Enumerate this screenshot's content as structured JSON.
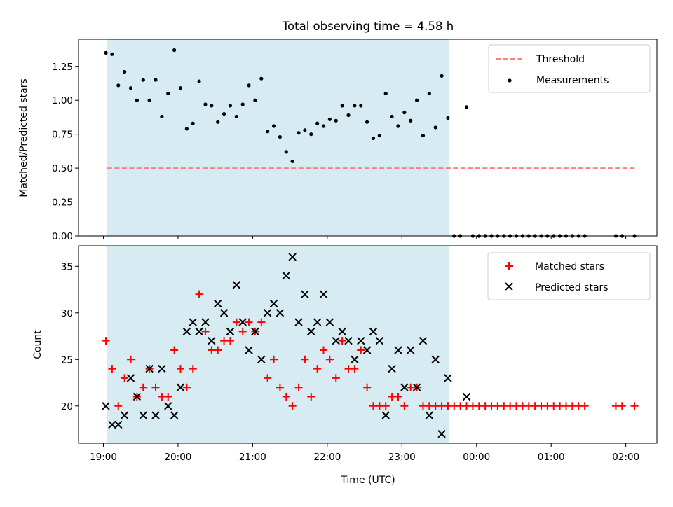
{
  "chart_data": {
    "type": "scatter",
    "title": "Total observing time = 4.58 h",
    "xlabel": "Time (UTC)",
    "xlim": [
      "18:40",
      "02:25"
    ],
    "x_tick_labels": [
      "19:00",
      "20:00",
      "21:00",
      "22:00",
      "23:00",
      "00:00",
      "01:00",
      "02:00"
    ],
    "shaded_region": {
      "start": "19:03",
      "end": "23:38",
      "color": "#add8e6"
    },
    "panels": [
      {
        "ylabel": "Matched/Predicted stars",
        "ylim": [
          0,
          1.45
        ],
        "y_tick_labels": [
          "0.00",
          "0.25",
          "0.50",
          "0.75",
          "1.00",
          "1.25"
        ],
        "legend": {
          "position": "top-right",
          "entries": [
            "Threshold",
            "Measurements"
          ]
        },
        "threshold": {
          "name": "Threshold",
          "value": 0.5,
          "x_start": "19:03",
          "x_end": "02:08",
          "color": "#ff7f7f",
          "style": "dashed"
        },
        "series": [
          {
            "name": "Measurements",
            "marker": "dot",
            "color": "#000000",
            "points": [
              [
                "19:02",
                1.35
              ],
              [
                "19:07",
                1.34
              ],
              [
                "19:12",
                1.11
              ],
              [
                "19:17",
                1.21
              ],
              [
                "19:22",
                1.09
              ],
              [
                "19:27",
                1.0
              ],
              [
                "19:32",
                1.15
              ],
              [
                "19:37",
                1.0
              ],
              [
                "19:42",
                1.15
              ],
              [
                "19:47",
                0.88
              ],
              [
                "19:52",
                1.05
              ],
              [
                "19:57",
                1.37
              ],
              [
                "20:02",
                1.09
              ],
              [
                "20:07",
                0.79
              ],
              [
                "20:12",
                0.83
              ],
              [
                "20:17",
                1.14
              ],
              [
                "20:22",
                0.97
              ],
              [
                "20:27",
                0.96
              ],
              [
                "20:32",
                0.84
              ],
              [
                "20:37",
                0.9
              ],
              [
                "20:42",
                0.96
              ],
              [
                "20:47",
                0.88
              ],
              [
                "20:52",
                0.97
              ],
              [
                "20:57",
                1.11
              ],
              [
                "21:02",
                1.0
              ],
              [
                "21:07",
                1.16
              ],
              [
                "21:12",
                0.77
              ],
              [
                "21:17",
                0.81
              ],
              [
                "21:22",
                0.73
              ],
              [
                "21:27",
                0.62
              ],
              [
                "21:32",
                0.55
              ],
              [
                "21:37",
                0.76
              ],
              [
                "21:42",
                0.78
              ],
              [
                "21:47",
                0.75
              ],
              [
                "21:52",
                0.83
              ],
              [
                "21:57",
                0.81
              ],
              [
                "22:02",
                0.86
              ],
              [
                "22:07",
                0.85
              ],
              [
                "22:12",
                0.96
              ],
              [
                "22:17",
                0.89
              ],
              [
                "22:22",
                0.96
              ],
              [
                "22:27",
                0.96
              ],
              [
                "22:32",
                0.84
              ],
              [
                "22:37",
                0.72
              ],
              [
                "22:42",
                0.74
              ],
              [
                "22:47",
                1.05
              ],
              [
                "22:52",
                0.88
              ],
              [
                "22:57",
                0.81
              ],
              [
                "23:02",
                0.91
              ],
              [
                "23:07",
                0.85
              ],
              [
                "23:12",
                1.0
              ],
              [
                "23:17",
                0.74
              ],
              [
                "23:22",
                1.05
              ],
              [
                "23:27",
                0.8
              ],
              [
                "23:32",
                1.18
              ],
              [
                "23:37",
                0.87
              ],
              [
                "23:42",
                0.0
              ],
              [
                "23:47",
                0.0
              ],
              [
                "23:52",
                0.95
              ],
              [
                "23:57",
                0.0
              ],
              [
                "00:02",
                0.0
              ],
              [
                "00:07",
                0.0
              ],
              [
                "00:12",
                0.0
              ],
              [
                "00:17",
                0.0
              ],
              [
                "00:22",
                0.0
              ],
              [
                "00:27",
                0.0
              ],
              [
                "00:32",
                0.0
              ],
              [
                "00:37",
                0.0
              ],
              [
                "00:42",
                0.0
              ],
              [
                "00:47",
                0.0
              ],
              [
                "00:52",
                0.0
              ],
              [
                "00:57",
                0.0
              ],
              [
                "01:02",
                0.0
              ],
              [
                "01:07",
                0.0
              ],
              [
                "01:12",
                0.0
              ],
              [
                "01:17",
                0.0
              ],
              [
                "01:22",
                0.0
              ],
              [
                "01:27",
                0.0
              ],
              [
                "01:52",
                0.0
              ],
              [
                "01:57",
                0.0
              ],
              [
                "02:07",
                0.0
              ]
            ]
          }
        ]
      },
      {
        "ylabel": "Count",
        "ylim": [
          16,
          37.2
        ],
        "y_tick_labels": [
          "20",
          "25",
          "30",
          "35"
        ],
        "legend": {
          "position": "top-right",
          "entries": [
            "Matched stars",
            "Predicted stars"
          ]
        },
        "series": [
          {
            "name": "Matched stars",
            "marker": "plus",
            "color": "#ff0000",
            "points": [
              [
                "19:02",
                27
              ],
              [
                "19:07",
                24
              ],
              [
                "19:12",
                20
              ],
              [
                "19:17",
                23
              ],
              [
                "19:22",
                25
              ],
              [
                "19:27",
                21
              ],
              [
                "19:32",
                22
              ],
              [
                "19:37",
                24
              ],
              [
                "19:42",
                22
              ],
              [
                "19:47",
                21
              ],
              [
                "19:52",
                21
              ],
              [
                "19:57",
                26
              ],
              [
                "20:02",
                24
              ],
              [
                "20:07",
                22
              ],
              [
                "20:12",
                24
              ],
              [
                "20:17",
                32
              ],
              [
                "20:22",
                28
              ],
              [
                "20:27",
                26
              ],
              [
                "20:32",
                26
              ],
              [
                "20:37",
                27
              ],
              [
                "20:42",
                27
              ],
              [
                "20:47",
                29
              ],
              [
                "20:52",
                28
              ],
              [
                "20:57",
                29
              ],
              [
                "21:02",
                28
              ],
              [
                "21:07",
                29
              ],
              [
                "21:12",
                23
              ],
              [
                "21:17",
                25
              ],
              [
                "21:22",
                22
              ],
              [
                "21:27",
                21
              ],
              [
                "21:32",
                20
              ],
              [
                "21:37",
                22
              ],
              [
                "21:42",
                25
              ],
              [
                "21:47",
                21
              ],
              [
                "21:52",
                24
              ],
              [
                "21:57",
                26
              ],
              [
                "22:02",
                25
              ],
              [
                "22:07",
                23
              ],
              [
                "22:12",
                27
              ],
              [
                "22:17",
                24
              ],
              [
                "22:22",
                24
              ],
              [
                "22:27",
                26
              ],
              [
                "22:32",
                22
              ],
              [
                "22:37",
                20
              ],
              [
                "22:42",
                20
              ],
              [
                "22:47",
                20
              ],
              [
                "22:52",
                21
              ],
              [
                "22:57",
                21
              ],
              [
                "23:02",
                20
              ],
              [
                "23:07",
                22
              ],
              [
                "23:12",
                22
              ],
              [
                "23:17",
                20
              ],
              [
                "23:22",
                20
              ],
              [
                "23:27",
                20
              ],
              [
                "23:32",
                20
              ],
              [
                "23:37",
                20
              ],
              [
                "23:42",
                20
              ],
              [
                "23:47",
                20
              ],
              [
                "23:52",
                20
              ],
              [
                "23:57",
                20
              ],
              [
                "00:02",
                20
              ],
              [
                "00:07",
                20
              ],
              [
                "00:12",
                20
              ],
              [
                "00:17",
                20
              ],
              [
                "00:22",
                20
              ],
              [
                "00:27",
                20
              ],
              [
                "00:32",
                20
              ],
              [
                "00:37",
                20
              ],
              [
                "00:42",
                20
              ],
              [
                "00:47",
                20
              ],
              [
                "00:52",
                20
              ],
              [
                "00:57",
                20
              ],
              [
                "01:02",
                20
              ],
              [
                "01:07",
                20
              ],
              [
                "01:12",
                20
              ],
              [
                "01:17",
                20
              ],
              [
                "01:22",
                20
              ],
              [
                "01:27",
                20
              ],
              [
                "01:52",
                20
              ],
              [
                "01:57",
                20
              ],
              [
                "02:07",
                20
              ]
            ]
          },
          {
            "name": "Predicted stars",
            "marker": "x",
            "color": "#000000",
            "points": [
              [
                "19:02",
                20
              ],
              [
                "19:07",
                18
              ],
              [
                "19:12",
                18
              ],
              [
                "19:17",
                19
              ],
              [
                "19:22",
                23
              ],
              [
                "19:27",
                21
              ],
              [
                "19:32",
                19
              ],
              [
                "19:37",
                24
              ],
              [
                "19:42",
                19
              ],
              [
                "19:47",
                24
              ],
              [
                "19:52",
                20
              ],
              [
                "19:57",
                19
              ],
              [
                "20:02",
                22
              ],
              [
                "20:07",
                28
              ],
              [
                "20:12",
                29
              ],
              [
                "20:17",
                28
              ],
              [
                "20:22",
                29
              ],
              [
                "20:27",
                27
              ],
              [
                "20:32",
                31
              ],
              [
                "20:37",
                30
              ],
              [
                "20:42",
                28
              ],
              [
                "20:47",
                33
              ],
              [
                "20:52",
                29
              ],
              [
                "20:57",
                26
              ],
              [
                "21:02",
                28
              ],
              [
                "21:07",
                25
              ],
              [
                "21:12",
                30
              ],
              [
                "21:17",
                31
              ],
              [
                "21:22",
                30
              ],
              [
                "21:27",
                34
              ],
              [
                "21:32",
                36
              ],
              [
                "21:37",
                29
              ],
              [
                "21:42",
                32
              ],
              [
                "21:47",
                28
              ],
              [
                "21:52",
                29
              ],
              [
                "21:57",
                32
              ],
              [
                "22:02",
                29
              ],
              [
                "22:07",
                27
              ],
              [
                "22:12",
                28
              ],
              [
                "22:17",
                27
              ],
              [
                "22:22",
                25
              ],
              [
                "22:27",
                27
              ],
              [
                "22:32",
                26
              ],
              [
                "22:37",
                28
              ],
              [
                "22:42",
                27
              ],
              [
                "22:47",
                19
              ],
              [
                "22:52",
                24
              ],
              [
                "22:57",
                26
              ],
              [
                "23:02",
                22
              ],
              [
                "23:07",
                26
              ],
              [
                "23:12",
                22
              ],
              [
                "23:17",
                27
              ],
              [
                "23:22",
                19
              ],
              [
                "23:27",
                25
              ],
              [
                "23:32",
                17
              ],
              [
                "23:37",
                23
              ],
              [
                "23:52",
                21
              ]
            ]
          }
        ]
      }
    ]
  }
}
